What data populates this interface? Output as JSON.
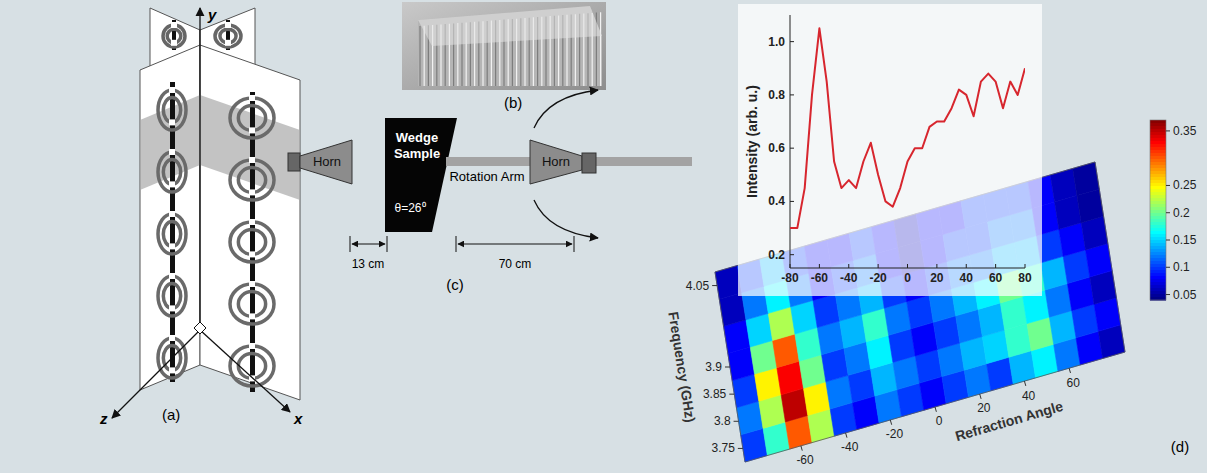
{
  "diagram": {
    "panel_a": {
      "label": "(a)",
      "axis_x": "x",
      "axis_y": "y",
      "axis_z": "z"
    },
    "panel_b": {
      "label": "(b)"
    },
    "panel_c": {
      "label": "(c)",
      "source_horn": "Horn",
      "sample": "Wedge Sample",
      "wedge_angle": "θ=26⁰",
      "arm": "Rotation Arm",
      "detector_horn": "Horn",
      "horn_gap": "13 cm",
      "arm_length": "70 cm"
    },
    "panel_d": {
      "label": "(d)"
    }
  },
  "chart_data": [
    {
      "type": "heatmap",
      "x_label": "Refraction Angle",
      "y_label": "Frequency (GHz)",
      "x": [
        -80,
        -70,
        -60,
        -50,
        -40,
        -30,
        -20,
        -10,
        0,
        10,
        20,
        30,
        40,
        50,
        60,
        70,
        80
      ],
      "y": [
        3.75,
        3.8,
        3.85,
        3.9,
        3.95,
        4,
        4.05
      ],
      "cells": [
        [
          0.1,
          0.18,
          0.3,
          0.22,
          0.1,
          0.08,
          0.12,
          0.1,
          0.08,
          0.1,
          0.12,
          0.1,
          0.14,
          0.16,
          0.12,
          0.08,
          0.06
        ],
        [
          0.12,
          0.22,
          0.35,
          0.25,
          0.12,
          0.1,
          0.14,
          0.12,
          0.1,
          0.12,
          0.14,
          0.15,
          0.18,
          0.2,
          0.14,
          0.1,
          0.08
        ],
        [
          0.1,
          0.25,
          0.33,
          0.2,
          0.1,
          0.12,
          0.16,
          0.1,
          0.08,
          0.1,
          0.12,
          0.14,
          0.18,
          0.16,
          0.12,
          0.08,
          0.06
        ],
        [
          0.08,
          0.2,
          0.3,
          0.18,
          0.12,
          0.14,
          0.18,
          0.12,
          0.1,
          0.12,
          0.14,
          0.16,
          0.2,
          0.18,
          0.14,
          0.1,
          0.08
        ],
        [
          0.08,
          0.15,
          0.22,
          0.15,
          0.1,
          0.12,
          0.14,
          0.1,
          0.08,
          0.1,
          0.12,
          0.12,
          0.14,
          0.14,
          0.1,
          0.08,
          0.06
        ],
        [
          0.06,
          0.12,
          0.16,
          0.12,
          0.08,
          0.1,
          0.12,
          0.08,
          0.06,
          0.08,
          0.1,
          0.1,
          0.12,
          0.12,
          0.08,
          0.06,
          0.05
        ],
        [
          0.06,
          0.1,
          0.14,
          0.1,
          0.08,
          0.08,
          0.1,
          0.08,
          0.06,
          0.08,
          0.08,
          0.1,
          0.1,
          0.1,
          0.08,
          0.06,
          0.05
        ]
      ],
      "xlim": [
        -85,
        85
      ],
      "xticks": [
        -60,
        -40,
        -20,
        0,
        20,
        40,
        60
      ],
      "ylim": [
        3.725,
        4.075
      ],
      "yticks": [
        3.75,
        3.8,
        3.85,
        3.9,
        4.05
      ],
      "colorbar": {
        "range": [
          0.04,
          0.37
        ],
        "ticks": [
          0.05,
          0.1,
          0.15,
          0.2,
          0.25,
          0.35
        ]
      }
    },
    {
      "type": "line",
      "y_label": "Intensity (arb. u.)",
      "color": "#d7262e",
      "x": [
        -80,
        -75,
        -70,
        -65,
        -60,
        -55,
        -50,
        -45,
        -40,
        -35,
        -30,
        -25,
        -20,
        -15,
        -10,
        -5,
        0,
        5,
        10,
        15,
        20,
        25,
        30,
        35,
        40,
        45,
        50,
        55,
        60,
        65,
        70,
        75,
        80
      ],
      "values": [
        0.3,
        0.3,
        0.45,
        0.8,
        1.05,
        0.85,
        0.55,
        0.45,
        0.48,
        0.45,
        0.55,
        0.62,
        0.5,
        0.4,
        0.38,
        0.45,
        0.55,
        0.6,
        0.6,
        0.68,
        0.7,
        0.7,
        0.75,
        0.82,
        0.8,
        0.72,
        0.85,
        0.88,
        0.85,
        0.75,
        0.85,
        0.8,
        0.9
      ],
      "xlim": [
        -80,
        80
      ],
      "xticks": [
        -80,
        -60,
        -40,
        -20,
        0,
        20,
        40,
        60,
        80
      ],
      "ylim": [
        0.15,
        1.1
      ],
      "yticks": [
        0.2,
        0.4,
        0.6,
        0.8,
        {
          "value": 1,
          "label": "1.0"
        }
      ]
    }
  ]
}
